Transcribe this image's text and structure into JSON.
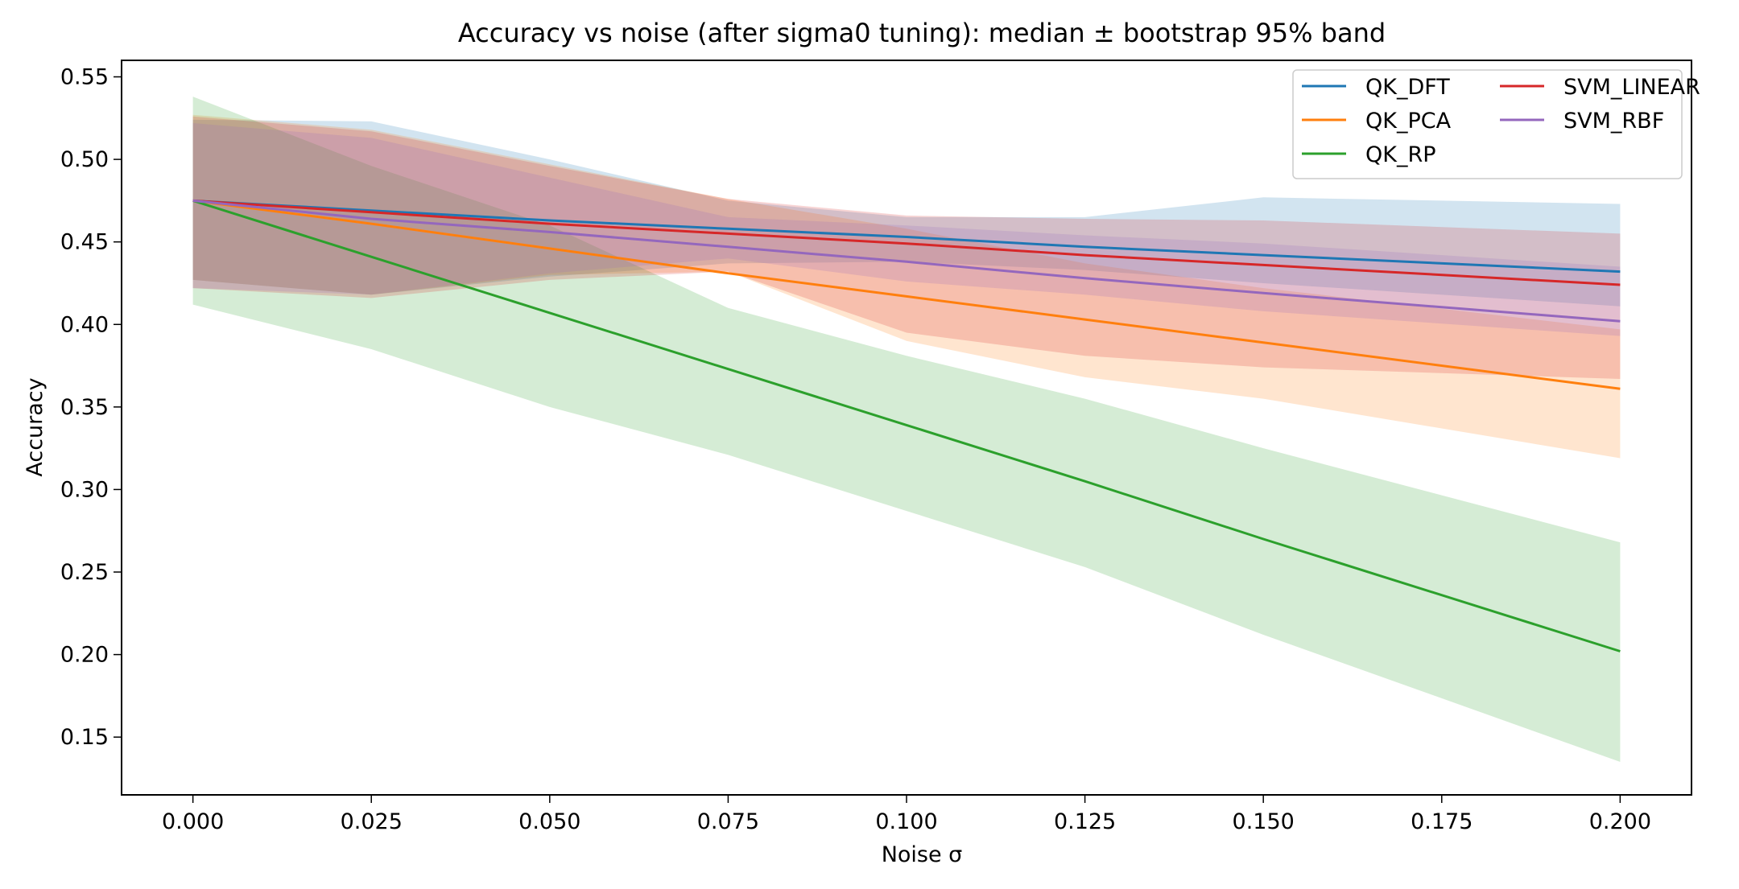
{
  "chart_data": {
    "type": "line",
    "title": "Accuracy vs noise (after sigma0 tuning): median ± bootstrap 95% band",
    "xlabel": "Noise σ",
    "ylabel": "Accuracy",
    "xlim": [
      -0.01,
      0.21
    ],
    "ylim": [
      0.115,
      0.56
    ],
    "grid": false,
    "legend_position": "top-right",
    "legend_columns": 2,
    "x": [
      0.0,
      0.025,
      0.05,
      0.075,
      0.1,
      0.125,
      0.15,
      0.2
    ],
    "x_ticks": [
      0.0,
      0.025,
      0.05,
      0.075,
      0.1,
      0.125,
      0.15,
      0.175,
      0.2
    ],
    "x_tick_labels": [
      "0.000",
      "0.025",
      "0.050",
      "0.075",
      "0.100",
      "0.125",
      "0.150",
      "0.175",
      "0.200"
    ],
    "y_ticks": [
      0.15,
      0.2,
      0.25,
      0.3,
      0.35,
      0.4,
      0.45,
      0.5,
      0.55
    ],
    "y_tick_labels": [
      "0.15",
      "0.20",
      "0.25",
      "0.30",
      "0.35",
      "0.40",
      "0.45",
      "0.50",
      "0.55"
    ],
    "series": [
      {
        "name": "QK_DFT",
        "color": "#1f77b4",
        "values": [
          0.475,
          0.469,
          0.463,
          0.458,
          0.453,
          0.447,
          0.442,
          0.432
        ],
        "lower": [
          0.427,
          0.418,
          0.429,
          0.437,
          0.438,
          0.433,
          0.425,
          0.411
        ],
        "upper": [
          0.524,
          0.523,
          0.5,
          0.475,
          0.465,
          0.465,
          0.477,
          0.473
        ]
      },
      {
        "name": "QK_PCA",
        "color": "#ff7f0e",
        "values": [
          0.475,
          0.461,
          0.446,
          0.431,
          0.417,
          0.403,
          0.389,
          0.361
        ],
        "lower": [
          0.427,
          0.418,
          0.43,
          0.432,
          0.39,
          0.368,
          0.355,
          0.319
        ],
        "upper": [
          0.527,
          0.518,
          0.497,
          0.476,
          0.458,
          0.437,
          0.422,
          0.397
        ]
      },
      {
        "name": "QK_RP",
        "color": "#2ca02c",
        "values": [
          0.475,
          0.441,
          0.407,
          0.373,
          0.339,
          0.305,
          0.27,
          0.202
        ],
        "lower": [
          0.412,
          0.385,
          0.35,
          0.321,
          0.287,
          0.253,
          0.212,
          0.135
        ],
        "upper": [
          0.538,
          0.496,
          0.46,
          0.41,
          0.381,
          0.355,
          0.325,
          0.268
        ]
      },
      {
        "name": "SVM_LINEAR",
        "color": "#d62728",
        "values": [
          0.475,
          0.468,
          0.461,
          0.455,
          0.449,
          0.442,
          0.436,
          0.424
        ],
        "lower": [
          0.422,
          0.416,
          0.427,
          0.432,
          0.395,
          0.381,
          0.374,
          0.367
        ],
        "upper": [
          0.526,
          0.517,
          0.496,
          0.476,
          0.466,
          0.464,
          0.463,
          0.455
        ]
      },
      {
        "name": "SVM_RBF",
        "color": "#9467bd",
        "values": [
          0.475,
          0.464,
          0.456,
          0.447,
          0.438,
          0.428,
          0.419,
          0.402
        ],
        "lower": [
          0.422,
          0.418,
          0.431,
          0.44,
          0.426,
          0.418,
          0.408,
          0.393
        ],
        "upper": [
          0.522,
          0.513,
          0.489,
          0.465,
          0.46,
          0.454,
          0.449,
          0.435
        ]
      }
    ]
  }
}
